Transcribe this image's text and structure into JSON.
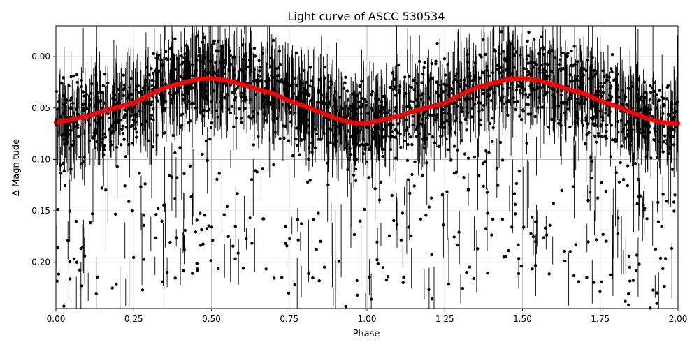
{
  "chart_data": {
    "type": "scatter",
    "title": "Light curve of ASCC 530534",
    "xlabel": "Phase",
    "ylabel": "Δ Magnitude",
    "xlim": [
      0.0,
      2.0
    ],
    "ylim": [
      0.245,
      -0.03
    ],
    "y_inverted": true,
    "grid": true,
    "x_ticks": [
      0.0,
      0.25,
      0.5,
      0.75,
      1.0,
      1.25,
      1.5,
      1.75,
      2.0
    ],
    "x_tick_labels": [
      "0.00",
      "0.25",
      "0.50",
      "0.75",
      "1.00",
      "1.25",
      "1.50",
      "1.75",
      "2.00"
    ],
    "y_ticks": [
      0.0,
      0.05,
      0.1,
      0.15,
      0.2
    ],
    "y_tick_labels": [
      "0.00",
      "0.05",
      "0.10",
      "0.15",
      "0.20"
    ],
    "series": [
      {
        "color": "#000000",
        "marker": "circle",
        "error_bars": true,
        "description_of_distribution": "dense noisy photometry with error bars, centered on binned curve, scatter up to 0.245"
      },
      {
        "color": "#ff0000",
        "marker": "circle",
        "x": [
          0.0,
          0.05,
          0.1,
          0.15,
          0.2,
          0.25,
          0.3,
          0.35,
          0.4,
          0.45,
          0.5,
          0.55,
          0.6,
          0.65,
          0.7,
          0.75,
          0.8,
          0.85,
          0.9,
          0.95,
          1.0,
          1.05,
          1.1,
          1.15,
          1.2,
          1.25,
          1.3,
          1.35,
          1.4,
          1.45,
          1.5,
          1.55,
          1.6,
          1.65,
          1.7,
          1.75,
          1.8,
          1.85,
          1.9,
          1.95,
          2.0
        ],
        "y": [
          0.064,
          0.061,
          0.058,
          0.053,
          0.049,
          0.045,
          0.037,
          0.03,
          0.026,
          0.022,
          0.021,
          0.023,
          0.027,
          0.032,
          0.036,
          0.043,
          0.048,
          0.054,
          0.06,
          0.064,
          0.065,
          0.061,
          0.058,
          0.053,
          0.049,
          0.045,
          0.037,
          0.03,
          0.026,
          0.022,
          0.021,
          0.023,
          0.027,
          0.032,
          0.036,
          0.043,
          0.048,
          0.054,
          0.06,
          0.064,
          0.065
        ]
      }
    ]
  }
}
